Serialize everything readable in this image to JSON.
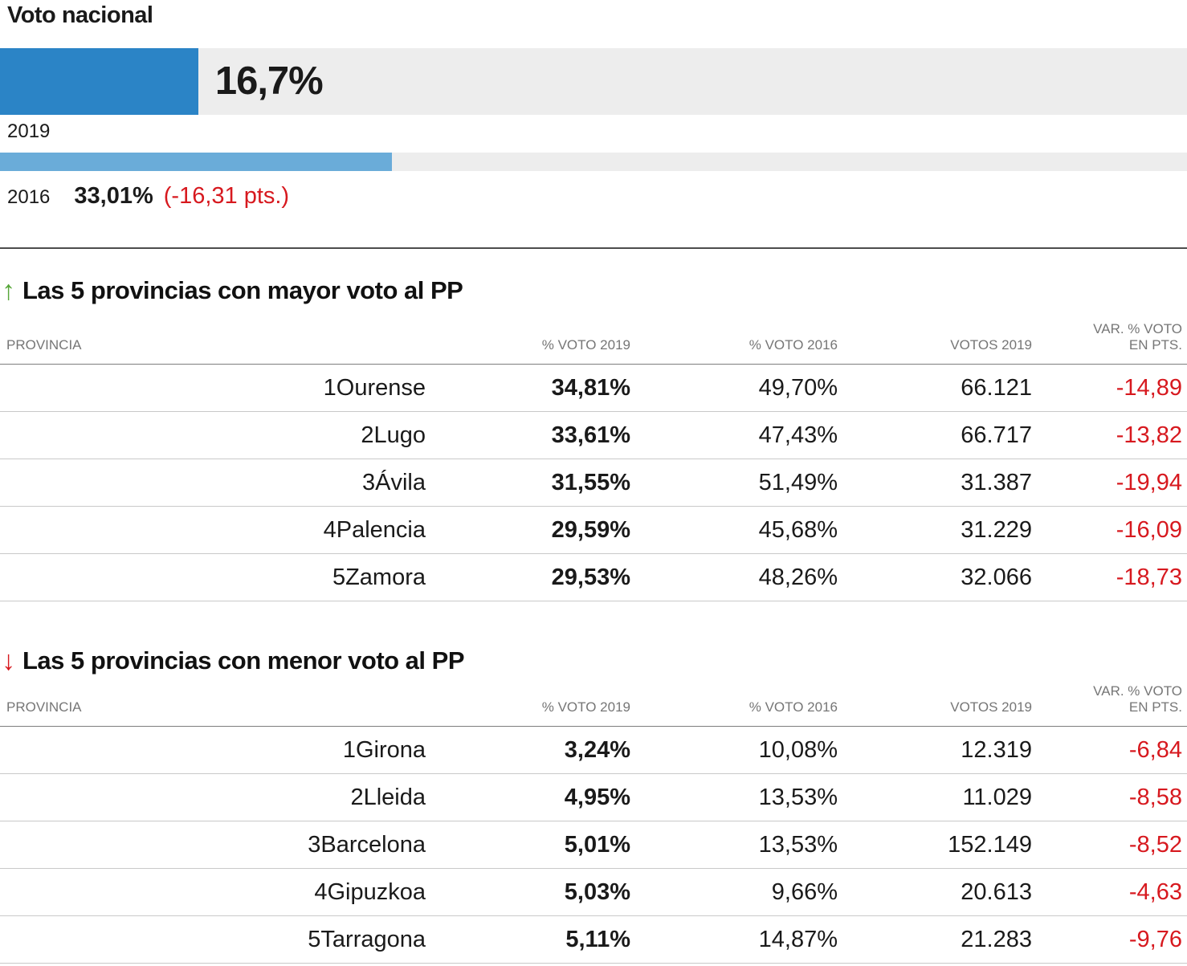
{
  "national": {
    "title": "Voto nacional",
    "track_color": "#ededed",
    "bars": [
      {
        "year": "2019",
        "value_label": "16,7%",
        "pct": 16.7,
        "color": "#2b84c6"
      },
      {
        "year": "2016",
        "value_label": "33,01%",
        "diff_label": "(-16,31 pts.)",
        "pct": 33.01,
        "color": "#6aacd9"
      }
    ]
  },
  "colors": {
    "negative_red": "#d7191f",
    "up_arrow_green": "#57a639",
    "down_arrow_red": "#d7191f",
    "header_gray": "#767676",
    "bar_2019_blue": "#2b84c6",
    "bar_2016_blue": "#6aacd9",
    "track_gray": "#ededed"
  },
  "tables": [
    {
      "arrow": "↑",
      "title": "Las 5 provincias con mayor voto al PP",
      "headers": {
        "provincia": "PROVINCIA",
        "v2019": "% VOTO 2019",
        "v2016": "% VOTO 2016",
        "votos": "VOTOS 2019",
        "var_line1": "VAR. % VOTO",
        "var_line2": "EN PTS."
      },
      "rows": [
        {
          "rank": "1",
          "name": "Ourense",
          "v2019": "34,81%",
          "v2016": "49,70%",
          "votos": "66.121",
          "var": "-14,89"
        },
        {
          "rank": "2",
          "name": "Lugo",
          "v2019": "33,61%",
          "v2016": "47,43%",
          "votos": "66.717",
          "var": "-13,82"
        },
        {
          "rank": "3",
          "name": "Ávila",
          "v2019": "31,55%",
          "v2016": "51,49%",
          "votos": "31.387",
          "var": "-19,94"
        },
        {
          "rank": "4",
          "name": "Palencia",
          "v2019": "29,59%",
          "v2016": "45,68%",
          "votos": "31.229",
          "var": "-16,09"
        },
        {
          "rank": "5",
          "name": "Zamora",
          "v2019": "29,53%",
          "v2016": "48,26%",
          "votos": "32.066",
          "var": "-18,73"
        }
      ]
    },
    {
      "arrow": "↓",
      "title": "Las 5 provincias con menor voto al PP",
      "headers": {
        "provincia": "PROVINCIA",
        "v2019": "% VOTO 2019",
        "v2016": "% VOTO 2016",
        "votos": "VOTOS 2019",
        "var_line1": "VAR. % VOTO",
        "var_line2": "EN PTS."
      },
      "rows": [
        {
          "rank": "1",
          "name": "Girona",
          "v2019": "3,24%",
          "v2016": "10,08%",
          "votos": "12.319",
          "var": "-6,84"
        },
        {
          "rank": "2",
          "name": "Lleida",
          "v2019": "4,95%",
          "v2016": "13,53%",
          "votos": "11.029",
          "var": "-8,58"
        },
        {
          "rank": "3",
          "name": "Barcelona",
          "v2019": "5,01%",
          "v2016": "13,53%",
          "votos": "152.149",
          "var": "-8,52"
        },
        {
          "rank": "4",
          "name": "Gipuzkoa",
          "v2019": "5,03%",
          "v2016": "9,66%",
          "votos": "20.613",
          "var": "-4,63"
        },
        {
          "rank": "5",
          "name": "Tarragona",
          "v2019": "5,11%",
          "v2016": "14,87%",
          "votos": "21.283",
          "var": "-9,76"
        }
      ]
    }
  ],
  "chart_data": [
    {
      "type": "bar",
      "orientation": "horizontal",
      "title": "Voto nacional",
      "categories": [
        "2019",
        "2016"
      ],
      "values": [
        16.7,
        33.01
      ],
      "value_labels": [
        "16,7%",
        "33,01%"
      ],
      "annotations": [
        "(-16,31 pts.)"
      ],
      "xlim": [
        0,
        100
      ],
      "unit": "% voto",
      "grid": false,
      "legend": false
    },
    {
      "type": "table",
      "title": "Las 5 provincias con mayor voto al PP",
      "columns": [
        "PROVINCIA",
        "% VOTO 2019",
        "% VOTO 2016",
        "VOTOS 2019",
        "VAR. % VOTO EN PTS."
      ],
      "rows": [
        [
          "Ourense",
          34.81,
          49.7,
          66121,
          -14.89
        ],
        [
          "Lugo",
          33.61,
          47.43,
          66717,
          -13.82
        ],
        [
          "Ávila",
          31.55,
          51.49,
          31387,
          -19.94
        ],
        [
          "Palencia",
          29.59,
          45.68,
          31229,
          -16.09
        ],
        [
          "Zamora",
          29.53,
          48.26,
          32066,
          -18.73
        ]
      ]
    },
    {
      "type": "table",
      "title": "Las 5 provincias con menor voto al PP",
      "columns": [
        "PROVINCIA",
        "% VOTO 2019",
        "% VOTO 2016",
        "VOTOS 2019",
        "VAR. % VOTO EN PTS."
      ],
      "rows": [
        [
          "Girona",
          3.24,
          10.08,
          12319,
          -6.84
        ],
        [
          "Lleida",
          4.95,
          13.53,
          11029,
          -8.58
        ],
        [
          "Barcelona",
          5.01,
          13.53,
          152149,
          -8.52
        ],
        [
          "Gipuzkoa",
          5.03,
          9.66,
          20613,
          -4.63
        ],
        [
          "Tarragona",
          5.11,
          14.87,
          21283,
          -9.76
        ]
      ]
    }
  ]
}
